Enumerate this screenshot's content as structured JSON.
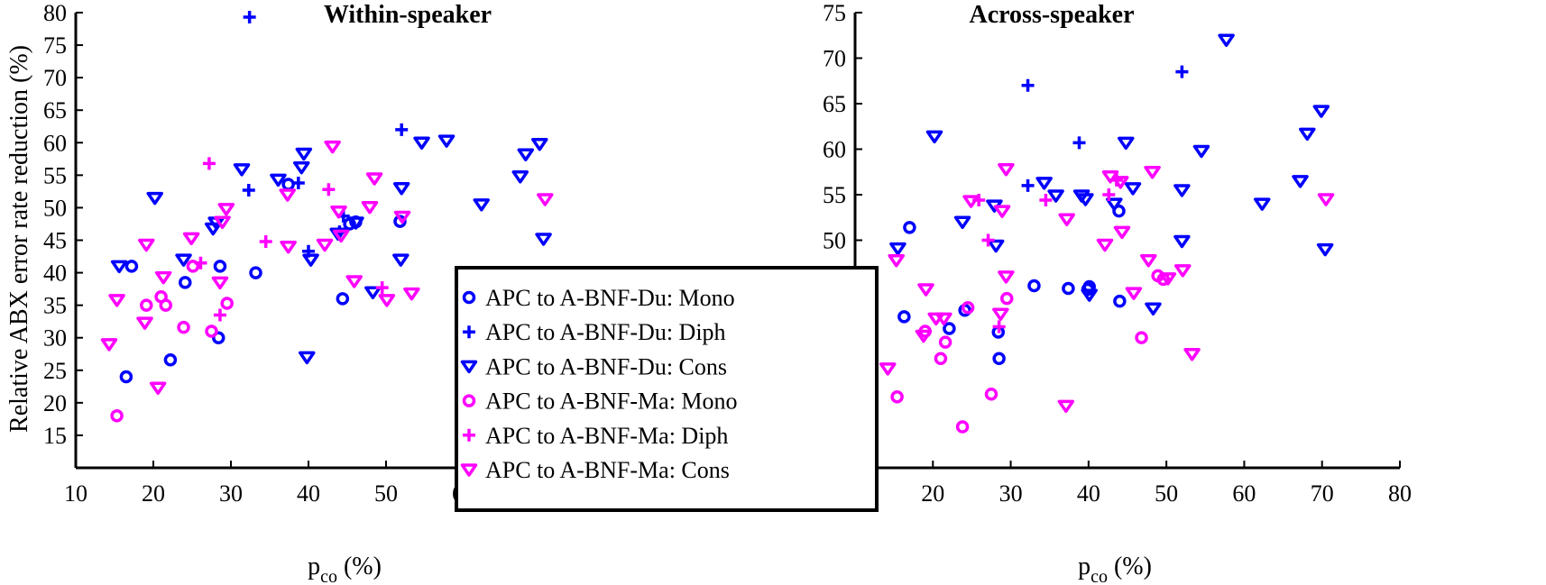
{
  "ylabel": "Relative ABX error rate reduction (%)",
  "xlabel_main": "p",
  "xlabel_sub": "co",
  "xlabel_unit": " (%)",
  "colors": {
    "du": "#0000ff",
    "ma": "#ff00ff",
    "axis": "#000000"
  },
  "legend": [
    {
      "label": "APC to A-BNF-Du: Mono",
      "marker": "circle",
      "color": "#0000ff"
    },
    {
      "label": "APC to A-BNF-Du: Diph",
      "marker": "plus",
      "color": "#0000ff"
    },
    {
      "label": "APC to A-BNF-Du: Cons",
      "marker": "triangle-down",
      "color": "#0000ff"
    },
    {
      "label": "APC to A-BNF-Ma: Mono",
      "marker": "circle",
      "color": "#ff00ff"
    },
    {
      "label": "APC to A-BNF-Ma: Diph",
      "marker": "plus",
      "color": "#ff00ff"
    },
    {
      "label": "APC to A-BNF-Ma: Cons",
      "marker": "triangle-down",
      "color": "#ff00ff"
    }
  ],
  "chart_data": [
    {
      "type": "scatter",
      "title": "Within-speaker",
      "xlim": [
        10,
        80
      ],
      "ylim": [
        10,
        80
      ],
      "xticks": [
        10,
        20,
        30,
        40,
        50,
        60,
        70,
        80
      ],
      "yticks": [
        15,
        20,
        25,
        30,
        35,
        40,
        45,
        50,
        55,
        60,
        65,
        70,
        75,
        80
      ],
      "series": [
        {
          "name": "APC to A-BNF-Du: Mono",
          "marker": "circle",
          "color": "#0000ff",
          "points": [
            [
              16.5,
              24
            ],
            [
              17.2,
              41
            ],
            [
              22.2,
              26.6
            ],
            [
              24.1,
              38.5
            ],
            [
              28.4,
              30
            ],
            [
              28.6,
              41
            ],
            [
              33.2,
              40
            ],
            [
              37.4,
              53.6
            ],
            [
              44.4,
              36
            ],
            [
              45.3,
              47.5
            ],
            [
              46.1,
              47.8
            ],
            [
              51.8,
              47.9
            ]
          ]
        },
        {
          "name": "APC to A-BNF-Du: Diph",
          "marker": "plus",
          "color": "#0000ff",
          "points": [
            [
              32.4,
              79.3
            ],
            [
              32.3,
              52.7
            ],
            [
              38.7,
              53.8
            ],
            [
              40,
              43.3
            ],
            [
              44,
              46.3
            ],
            [
              44.5,
              48.7
            ],
            [
              52,
              62
            ]
          ]
        },
        {
          "name": "APC to A-BNF-Du: Cons",
          "marker": "triangle-down",
          "color": "#0000ff",
          "points": [
            [
              15.6,
              41
            ],
            [
              20.2,
              51.5
            ],
            [
              23.9,
              42
            ],
            [
              27.7,
              46.8
            ],
            [
              28.1,
              47.7
            ],
            [
              31.4,
              55.9
            ],
            [
              36.1,
              54.3
            ],
            [
              39.1,
              56.2
            ],
            [
              39.4,
              58.3
            ],
            [
              39.8,
              27
            ],
            [
              40.3,
              42
            ],
            [
              43.8,
              46
            ],
            [
              46.1,
              47.7
            ],
            [
              48.3,
              37
            ],
            [
              52,
              53
            ],
            [
              51.9,
              42
            ],
            [
              54.6,
              60
            ],
            [
              57.8,
              60.3
            ],
            [
              62.3,
              50.5
            ],
            [
              67.3,
              54.8
            ],
            [
              68,
              58.2
            ],
            [
              69.8,
              59.8
            ],
            [
              70.3,
              45.2
            ]
          ]
        },
        {
          "name": "APC to A-BNF-Ma: Mono",
          "marker": "circle",
          "color": "#ff00ff",
          "points": [
            [
              15.3,
              18
            ],
            [
              19.1,
              35
            ],
            [
              21,
              36.3
            ],
            [
              21.6,
              35
            ],
            [
              23.9,
              31.6
            ],
            [
              25.1,
              41
            ],
            [
              27.5,
              31
            ],
            [
              29.5,
              35.3
            ]
          ]
        },
        {
          "name": "APC to A-BNF-Ma: Diph",
          "marker": "plus",
          "color": "#ff00ff",
          "points": [
            [
              27.2,
              56.8
            ],
            [
              26.1,
              41.5
            ],
            [
              28.6,
              33.5
            ],
            [
              34.5,
              44.8
            ],
            [
              42.6,
              52.8
            ],
            [
              49.5,
              37.7
            ]
          ]
        },
        {
          "name": "APC to A-BNF-Ma: Cons",
          "marker": "triangle-down",
          "color": "#ff00ff",
          "points": [
            [
              14.3,
              29
            ],
            [
              15.3,
              35.8
            ],
            [
              18.9,
              32.3
            ],
            [
              19.1,
              44.3
            ],
            [
              20.6,
              22.3
            ],
            [
              21.3,
              39.3
            ],
            [
              24.9,
              45.3
            ],
            [
              28.6,
              38.5
            ],
            [
              28.9,
              47.8
            ],
            [
              29.4,
              49.8
            ],
            [
              37.3,
              52
            ],
            [
              37.4,
              44
            ],
            [
              42.1,
              44.3
            ],
            [
              43.1,
              59.4
            ],
            [
              43.9,
              49.4
            ],
            [
              44.2,
              45.7
            ],
            [
              45.9,
              38.7
            ],
            [
              47.9,
              50.1
            ],
            [
              48.5,
              54.5
            ],
            [
              50.1,
              35.8
            ],
            [
              52.1,
              48.6
            ],
            [
              53.3,
              36.8
            ],
            [
              70.5,
              51.3
            ]
          ]
        }
      ]
    },
    {
      "type": "scatter",
      "title": "Across-speaker",
      "xlim": [
        10,
        80
      ],
      "ylim": [
        25,
        75
      ],
      "xticks": [
        10,
        20,
        30,
        40,
        50,
        60,
        70,
        80
      ],
      "yticks": [
        25,
        30,
        35,
        40,
        45,
        50,
        55,
        60,
        65,
        70,
        75
      ],
      "series": [
        {
          "name": "APC to A-BNF-Du: Mono",
          "marker": "circle",
          "color": "#0000ff",
          "points": [
            [
              16.3,
              41.6
            ],
            [
              17,
              51.4
            ],
            [
              22.1,
              40.3
            ],
            [
              24.1,
              42.3
            ],
            [
              28.4,
              39.9
            ],
            [
              28.5,
              37
            ],
            [
              33,
              45
            ],
            [
              37.4,
              44.7
            ],
            [
              39.9,
              44.6
            ],
            [
              40.1,
              44.9
            ],
            [
              43.9,
              53.2
            ],
            [
              44,
              43.3
            ]
          ]
        },
        {
          "name": "APC to A-BNF-Du: Diph",
          "marker": "plus",
          "color": "#0000ff",
          "points": [
            [
              32.2,
              67
            ],
            [
              32.2,
              56
            ],
            [
              38.8,
              60.7
            ],
            [
              52,
              68.5
            ]
          ]
        },
        {
          "name": "APC to A-BNF-Du: Cons",
          "marker": "triangle-down",
          "color": "#0000ff",
          "points": [
            [
              15.5,
              49.1
            ],
            [
              20.2,
              61.4
            ],
            [
              23.8,
              52
            ],
            [
              27.9,
              53.8
            ],
            [
              28.1,
              49.4
            ],
            [
              34.3,
              56.3
            ],
            [
              35.8,
              54.9
            ],
            [
              39.1,
              54.9
            ],
            [
              39.6,
              54.5
            ],
            [
              40.1,
              44
            ],
            [
              43.3,
              54
            ],
            [
              44.8,
              60.7
            ],
            [
              45.7,
              55.7
            ],
            [
              48.3,
              42.5
            ],
            [
              52,
              55.5
            ],
            [
              52,
              49.9
            ],
            [
              54.5,
              59.8
            ],
            [
              57.7,
              72
            ],
            [
              62.3,
              54
            ],
            [
              67.2,
              56.5
            ],
            [
              68.1,
              61.7
            ],
            [
              69.9,
              64.2
            ],
            [
              70.4,
              49
            ]
          ]
        },
        {
          "name": "APC to A-BNF-Ma: Mono",
          "marker": "circle",
          "color": "#ff00ff",
          "points": [
            [
              15.4,
              32.8
            ],
            [
              19,
              40
            ],
            [
              21,
              37
            ],
            [
              21.6,
              38.8
            ],
            [
              23.8,
              29.5
            ],
            [
              24.5,
              42.6
            ],
            [
              27.5,
              33.1
            ],
            [
              29.5,
              43.6
            ],
            [
              46.8,
              39.3
            ],
            [
              48.9,
              46.1
            ],
            [
              49.6,
              45.7
            ]
          ]
        },
        {
          "name": "APC to A-BNF-Ma: Diph",
          "marker": "plus",
          "color": "#ff00ff",
          "points": [
            [
              25.9,
              54.4
            ],
            [
              27.1,
              50
            ],
            [
              28.5,
              40.5
            ],
            [
              34.5,
              54.4
            ],
            [
              42.6,
              55
            ],
            [
              43.6,
              56.6
            ]
          ]
        },
        {
          "name": "APC to A-BNF-Ma: Cons",
          "marker": "triangle-down",
          "color": "#ff00ff",
          "points": [
            [
              14.2,
              35.9
            ],
            [
              15.3,
              47.8
            ],
            [
              18.8,
              39.5
            ],
            [
              19.1,
              44.6
            ],
            [
              20.4,
              41.4
            ],
            [
              21.4,
              41.4
            ],
            [
              24.9,
              54.3
            ],
            [
              28.7,
              41.9
            ],
            [
              28.9,
              53.2
            ],
            [
              29.4,
              57.8
            ],
            [
              29.4,
              46
            ],
            [
              37.1,
              31.8
            ],
            [
              37.2,
              52.3
            ],
            [
              42.1,
              49.5
            ],
            [
              42.8,
              57
            ],
            [
              44.1,
              56.4
            ],
            [
              44.3,
              50.9
            ],
            [
              45.8,
              44.2
            ],
            [
              47.7,
              47.8
            ],
            [
              48.2,
              57.5
            ],
            [
              50.2,
              45.8
            ],
            [
              52.1,
              46.7
            ],
            [
              53.3,
              37.5
            ],
            [
              70.5,
              54.5
            ]
          ]
        }
      ]
    }
  ]
}
